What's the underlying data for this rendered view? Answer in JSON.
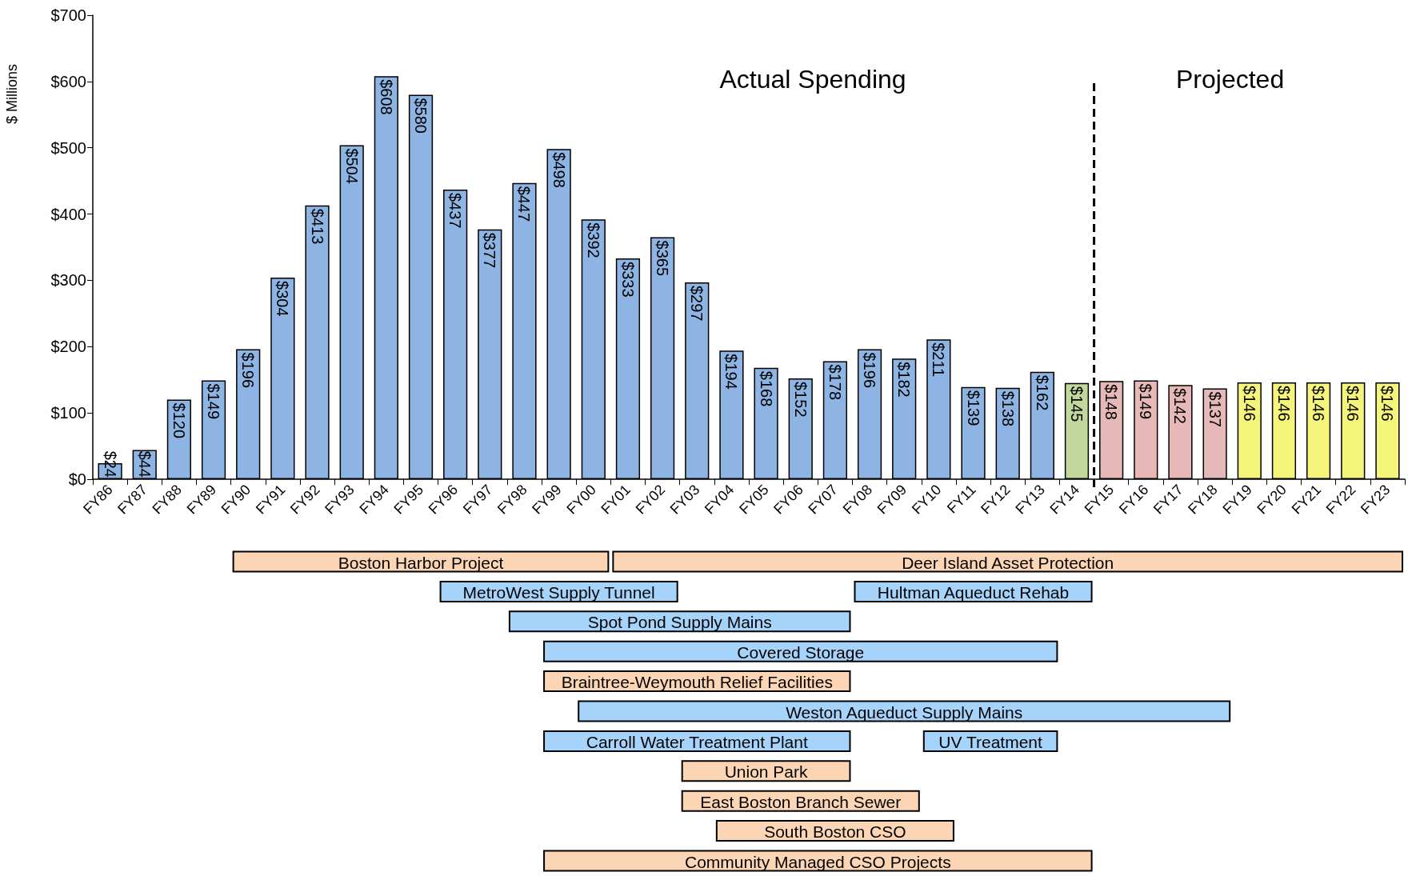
{
  "chart_data": {
    "type": "bar",
    "ylabel": "$ Millions",
    "categories": [
      "FY86",
      "FY87",
      "FY88",
      "FY89",
      "FY90",
      "FY91",
      "FY92",
      "FY93",
      "FY94",
      "FY95",
      "FY96",
      "FY97",
      "FY98",
      "FY99",
      "FY00",
      "FY01",
      "FY02",
      "FY03",
      "FY04",
      "FY05",
      "FY06",
      "FY07",
      "FY08",
      "FY09",
      "FY10",
      "FY11",
      "FY12",
      "FY13",
      "FY14",
      "FY15",
      "FY16",
      "FY17",
      "FY18",
      "FY19",
      "FY20",
      "FY21",
      "FY22",
      "FY23"
    ],
    "values": [
      24,
      44,
      120,
      149,
      196,
      304,
      413,
      504,
      608,
      580,
      437,
      377,
      447,
      498,
      392,
      333,
      365,
      297,
      194,
      168,
      152,
      178,
      196,
      182,
      211,
      139,
      138,
      162,
      145,
      148,
      149,
      142,
      137,
      146,
      146,
      146,
      146,
      146
    ],
    "value_labels": [
      "$24",
      "$44",
      "$120",
      "$149",
      "$196",
      "$304",
      "$413",
      "$504",
      "$608",
      "$580",
      "$437",
      "$377",
      "$447",
      "$498",
      "$392",
      "$333",
      "$365",
      "$297",
      "$194",
      "$168",
      "$152",
      "$178",
      "$196",
      "$182",
      "$211",
      "$139",
      "$138",
      "$162",
      "$145",
      "$148",
      "$149",
      "$142",
      "$137",
      "$146",
      "$146",
      "$146",
      "$146",
      "$146"
    ],
    "colors": [
      "#8db4e2",
      "#8db4e2",
      "#8db4e2",
      "#8db4e2",
      "#8db4e2",
      "#8db4e2",
      "#8db4e2",
      "#8db4e2",
      "#8db4e2",
      "#8db4e2",
      "#8db4e2",
      "#8db4e2",
      "#8db4e2",
      "#8db4e2",
      "#8db4e2",
      "#8db4e2",
      "#8db4e2",
      "#8db4e2",
      "#8db4e2",
      "#8db4e2",
      "#8db4e2",
      "#8db4e2",
      "#8db4e2",
      "#8db4e2",
      "#8db4e2",
      "#8db4e2",
      "#8db4e2",
      "#8db4e2",
      "#c3d69b",
      "#e6b9b8",
      "#e6b9b8",
      "#e6b9b8",
      "#e6b9b8",
      "#f5f57c",
      "#f5f57c",
      "#f5f57c",
      "#f5f57c",
      "#f5f57c"
    ],
    "ylim": [
      0,
      700
    ],
    "yticks": [
      {
        "value": 0,
        "label": "$0"
      },
      {
        "value": 100,
        "label": "$100"
      },
      {
        "value": 200,
        "label": "$200"
      },
      {
        "value": 300,
        "label": "$300"
      },
      {
        "value": 400,
        "label": "$400"
      },
      {
        "value": 500,
        "label": "$500"
      },
      {
        "value": 600,
        "label": "$600"
      },
      {
        "value": 700,
        "label": "$700"
      }
    ],
    "annotations": [
      "Actual Spending",
      "Projected",
      "Boston Harbor Project",
      "Deer Island Asset Protection",
      "MetroWest Supply Tunnel",
      "Hultman Aqueduct Rehab",
      "Spot Pond Supply Mains",
      "Covered Storage",
      "Braintree-Weymouth Relief Facilities",
      "Weston Aqueduct Supply Mains",
      "Carroll Water Treatment Plant",
      "UV Treatment",
      "Union Park",
      "East Boston Branch Sewer",
      "South Boston CSO",
      "Community Managed CSO Projects"
    ],
    "ref_lines": [
      {
        "axis": "x",
        "value": "FY15",
        "line_style": "dashed",
        "color": "#000000"
      }
    ]
  }
}
